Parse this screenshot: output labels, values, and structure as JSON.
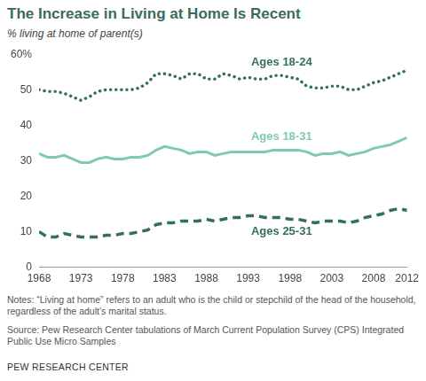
{
  "chart_data": {
    "type": "line",
    "title": "The Increase in Living at Home Is Recent",
    "subtitle": "% living at home of parent(s)",
    "notes": "Notes: “Living at home” refers to an adult who is the child or stepchild of the head of the household, regardless of the adult’s marital status.",
    "source": "Source: Pew Research Center tabulations of March Current Population Survey (CPS) Integrated Public Use Micro Samples",
    "credit": "PEW RESEARCH CENTER",
    "x": [
      1968,
      1969,
      1970,
      1971,
      1972,
      1973,
      1974,
      1975,
      1976,
      1977,
      1978,
      1979,
      1980,
      1981,
      1982,
      1983,
      1984,
      1985,
      1986,
      1987,
      1988,
      1989,
      1990,
      1991,
      1992,
      1993,
      1994,
      1995,
      1996,
      1997,
      1998,
      1999,
      2000,
      2001,
      2002,
      2003,
      2004,
      2005,
      2006,
      2007,
      2008,
      2009,
      2010,
      2011,
      2012
    ],
    "series": [
      {
        "name": "Ages 18-24",
        "color": "#336e5f",
        "line_style": "dotted",
        "values": [
          50,
          49.5,
          49.5,
          49,
          48,
          47,
          48,
          49.5,
          50,
          50,
          50,
          50,
          50.5,
          52,
          54.5,
          54.5,
          54,
          53,
          54.5,
          54.5,
          53,
          53,
          54.5,
          54,
          53,
          53.5,
          53,
          53,
          54,
          54,
          53.5,
          53,
          51,
          50.5,
          50.5,
          51,
          51,
          50,
          50,
          51,
          52,
          52.5,
          53.5,
          54.5,
          55.5
        ]
      },
      {
        "name": "Ages 18-31",
        "color": "#7ec8b4",
        "line_style": "solid",
        "values": [
          32,
          31,
          31,
          31.5,
          30.5,
          29.5,
          29.5,
          30.5,
          31,
          30.5,
          30.5,
          31,
          31,
          31.5,
          33,
          34,
          33.5,
          33,
          32,
          32.5,
          32.5,
          31.5,
          32,
          32.5,
          32.5,
          32.5,
          32.5,
          32.5,
          33,
          33,
          33,
          33,
          32.5,
          31.5,
          32,
          32,
          32.5,
          31.5,
          32,
          32.5,
          33.5,
          34,
          34.5,
          35.5,
          36.5
        ]
      },
      {
        "name": "Ages 25-31",
        "color": "#336e5f",
        "line_style": "dashed",
        "values": [
          10,
          8.5,
          8.5,
          9.5,
          9,
          8.5,
          8.5,
          8.5,
          9,
          9,
          9.5,
          9.5,
          10,
          10.5,
          12,
          12.5,
          12.5,
          13,
          13,
          13,
          13.5,
          13,
          13.5,
          14,
          14,
          14.5,
          14.5,
          14,
          14,
          14,
          13.5,
          13.5,
          13,
          12.5,
          13,
          13,
          13,
          12.5,
          13,
          14,
          14.5,
          15,
          16,
          16.5,
          16
        ]
      }
    ],
    "xlim": [
      1968,
      2012
    ],
    "xticks": [
      1968,
      1973,
      1978,
      1983,
      1988,
      1993,
      1998,
      2003,
      2008,
      2012
    ],
    "ylim": [
      0,
      60
    ],
    "yticks": [
      0,
      10,
      20,
      30,
      40,
      50,
      {
        "value": 60,
        "label": "60%"
      }
    ],
    "grid": false
  }
}
